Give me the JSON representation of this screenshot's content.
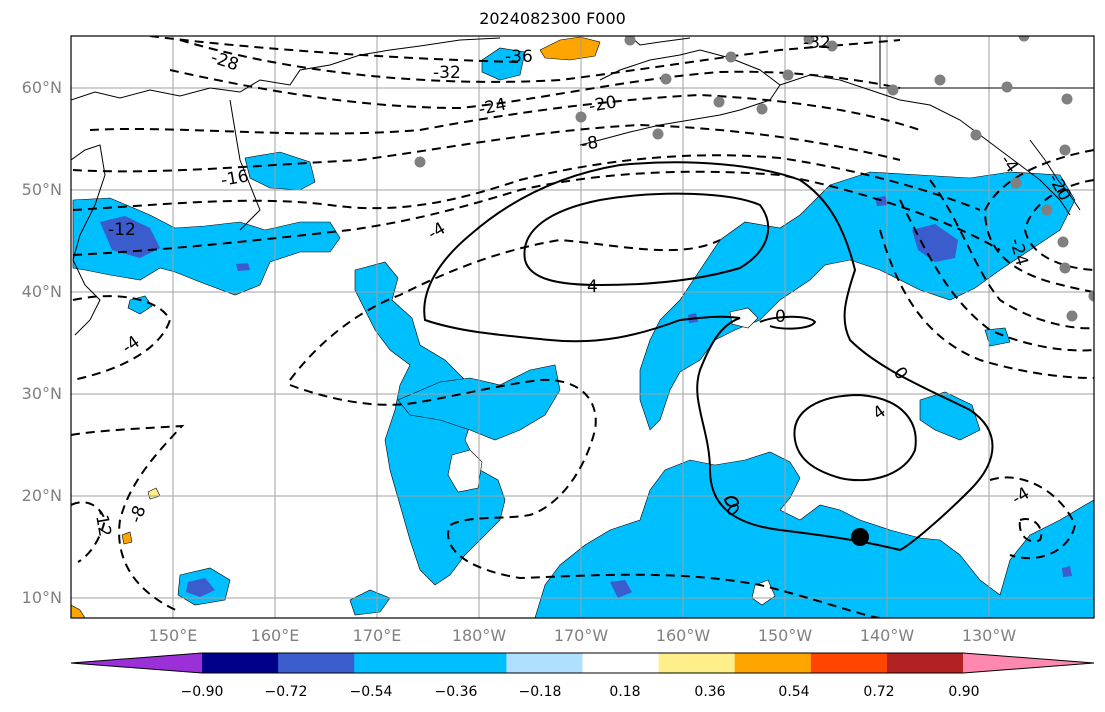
{
  "title": "2024082300 F000",
  "lat_labels": [
    "60°N",
    "50°N",
    "40°N",
    "30°N",
    "20°N",
    "10°N"
  ],
  "lon_labels": [
    "150°E",
    "160°E",
    "170°E",
    "180°W",
    "170°W",
    "160°W",
    "150°W",
    "140°W",
    "130°W"
  ],
  "contour_labels": {
    "m36": "-36",
    "m32a": "-32",
    "m32b": "-32",
    "m28": "-28",
    "m24": "-24",
    "m20": "-20",
    "m16": "-16",
    "m12a": "-12",
    "m12b": "-12",
    "m8a": "-8",
    "m8b": "-8",
    "m4a": "-4",
    "m4b": "-4",
    "m4c": "-4",
    "m4d": "-4",
    "m24e": "-24",
    "m20e": "-20",
    "p4a": "4",
    "p4b": "4",
    "z0a": "0",
    "z0b": "0",
    "z0c": "0"
  },
  "colorbar": {
    "ticks": [
      "−0.90",
      "−0.72",
      "−0.54",
      "−0.36",
      "−0.18",
      "0.18",
      "0.36",
      "0.54",
      "0.72",
      "0.90"
    ],
    "colors": [
      "#9b30d8",
      "#00008b",
      "#3a5ccc",
      "#00bfff",
      "#00bfff",
      "#b0e0ff",
      "#ffffff",
      "#ffef8a",
      "#ffa500",
      "#ff4500",
      "#b22222",
      "#ff88b0"
    ]
  },
  "fill_colors": {
    "neg_036_054": "#00bfff",
    "neg_054_072": "#3a5ccc",
    "pos_036_054": "#ffa500",
    "pos_018_036": "#ffef8a",
    "station": "#808080",
    "storm_center": "#000000"
  }
}
